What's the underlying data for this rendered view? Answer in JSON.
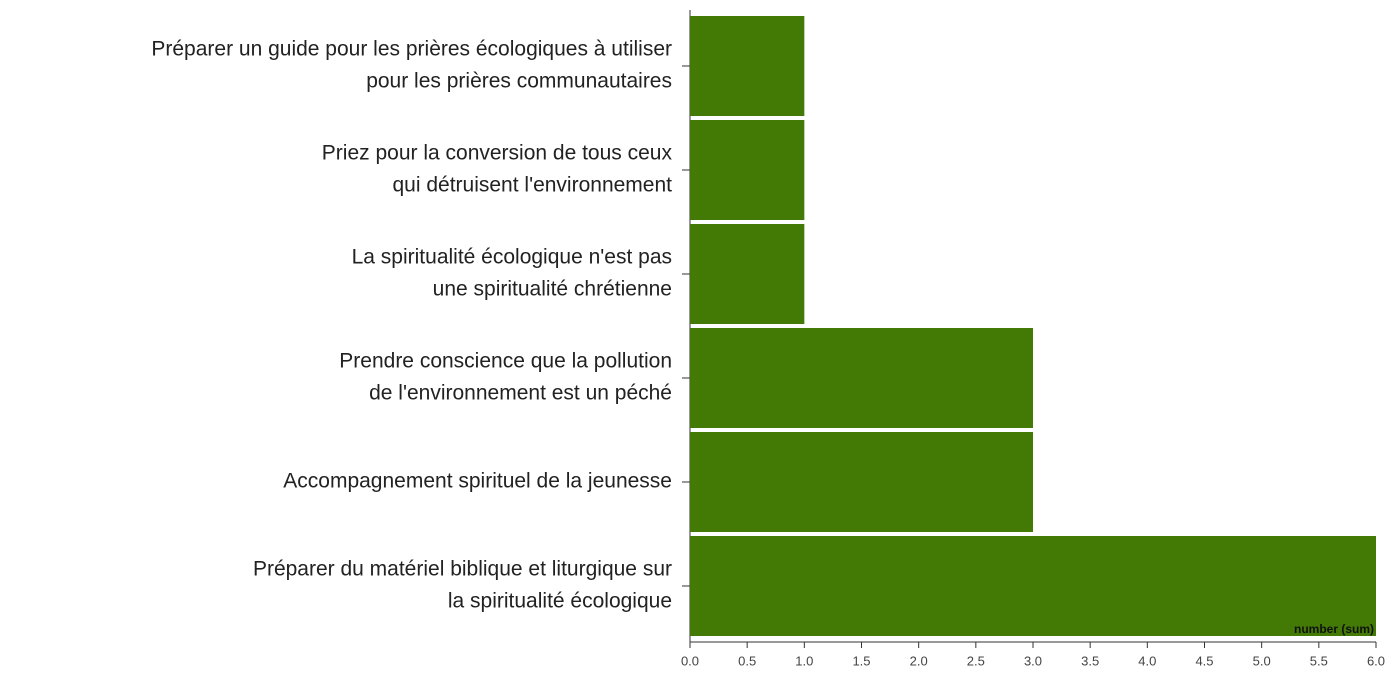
{
  "chart_data": {
    "type": "barh",
    "categories": [
      [
        "Préparer un guide pour les prières écologiques à utiliser",
        "pour les prières communautaires"
      ],
      [
        "Priez pour la conversion de tous ceux",
        "qui détruisent l'environnement"
      ],
      [
        "La spiritualité écologique n'est pas",
        "une spiritualité chrétienne"
      ],
      [
        "Prendre conscience que la pollution",
        "de l'environnement est un péché"
      ],
      [
        "Accompagnement spirituel de la jeunesse"
      ],
      [
        "Préparer du matériel biblique et liturgique sur",
        "la spiritualité écologique"
      ]
    ],
    "values": [
      1,
      1,
      1,
      3,
      3,
      6
    ],
    "color": "#437a05",
    "xlabel": "number (sum)",
    "xlim": [
      0,
      6
    ],
    "xticks": [
      {
        "value": 0,
        "label": "0.0"
      },
      {
        "value": 0.5,
        "label": "0.5"
      },
      {
        "value": 1,
        "label": "1.0"
      },
      {
        "value": 1.5,
        "label": "1.5"
      },
      {
        "value": 2,
        "label": "2.0"
      },
      {
        "value": 2.5,
        "label": "2.5"
      },
      {
        "value": 3,
        "label": "3.0"
      },
      {
        "value": 3.5,
        "label": "3.5"
      },
      {
        "value": 4,
        "label": "4.0"
      },
      {
        "value": 4.5,
        "label": "4.5"
      },
      {
        "value": 5,
        "label": "5.0"
      },
      {
        "value": 5.5,
        "label": "5.5"
      },
      {
        "value": 6,
        "label": "6.0"
      }
    ],
    "grid": false
  }
}
